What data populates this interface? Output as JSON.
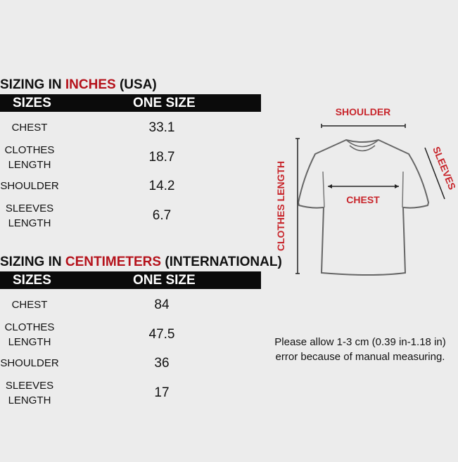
{
  "inches": {
    "title_prefix": "SIZING IN ",
    "title_highlight": "INCHES",
    "title_suffix": " (USA)",
    "col1": "SIZES",
    "col2": "ONE SIZE",
    "rows": [
      {
        "label": "CHEST",
        "value": "33.1"
      },
      {
        "label": "CLOTHES\nLENGTH",
        "value": "18.7"
      },
      {
        "label": "SHOULDER",
        "value": "14.2"
      },
      {
        "label": "SLEEVES\nLENGTH",
        "value": "6.7"
      }
    ]
  },
  "centimeters": {
    "title_prefix": "SIZING IN ",
    "title_highlight": "CENTIMETERS",
    "title_suffix": " (INTERNATIONAL)",
    "col1": "SIZES",
    "col2": "ONE SIZE",
    "rows": [
      {
        "label": "CHEST",
        "value": "84"
      },
      {
        "label": "CLOTHES\nLENGTH",
        "value": "47.5"
      },
      {
        "label": "SHOULDER",
        "value": "36"
      },
      {
        "label": "SLEEVES\nLENGTH",
        "value": "17"
      }
    ]
  },
  "diagram": {
    "shoulder": "SHOULDER",
    "chest": "CHEST",
    "clothes_length": "CLOTHES LENGTH",
    "sleeves": "SLEEVES"
  },
  "note": {
    "line1": "Please allow 1-3 cm (0.39 in-1.18 in)",
    "line2": "error because of manual measuring."
  },
  "colors": {
    "accent": "#b5121b",
    "header_bg": "#0b0b0b",
    "background": "#ececec"
  }
}
